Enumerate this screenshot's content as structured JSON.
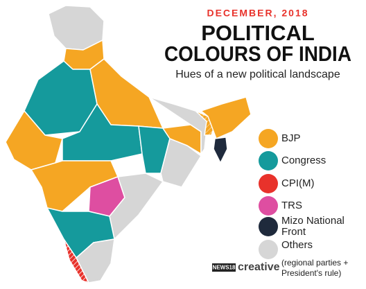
{
  "header": {
    "date": "DECEMBER, 2018",
    "title_line_1": "POLITICAL",
    "title_line_2": "COLOURS OF INDIA",
    "subtitle": "Hues of a new political landscape"
  },
  "legend": {
    "items": [
      {
        "name": "BJP",
        "color": "#f5a623"
      },
      {
        "name": "Congress",
        "color": "#159a9c"
      },
      {
        "name": "CPI(M)",
        "color": "#e8322b"
      },
      {
        "name": "TRS",
        "color": "#de4ea1"
      },
      {
        "name": "Mizo National Front",
        "color": "#1f2a3c"
      },
      {
        "name": "Others",
        "note": "(regional parties + President's rule)",
        "color": "#d6d6d6"
      }
    ]
  },
  "footer": {
    "brand": "NEWS18",
    "label": "creative"
  }
}
